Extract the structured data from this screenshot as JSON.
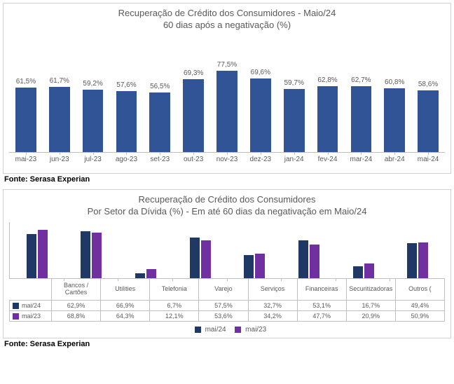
{
  "source_label": "Fonte: Serasa Experian",
  "chart1": {
    "type": "bar",
    "title_line1": "Recuperação de Crédito dos Consumidores - Maio/24",
    "title_line2": "60 dias após a negativação (%)",
    "title_fontsize": 13,
    "title_color": "#595959",
    "bar_color": "#305496",
    "background_color": "#ffffff",
    "border_color": "#d0d0d0",
    "axis_color": "#bfbfbf",
    "label_color": "#595959",
    "label_fontsize": 10,
    "ylim_max": 100,
    "categories": [
      "mai-23",
      "jun-23",
      "jul-23",
      "ago-23",
      "set-23",
      "out-23",
      "nov-23",
      "dez-23",
      "jan-24",
      "fev-24",
      "mar-24",
      "abr-24",
      "mai-24"
    ],
    "values": [
      61.5,
      61.7,
      59.2,
      57.6,
      56.5,
      69.3,
      77.5,
      69.6,
      59.7,
      62.8,
      62.7,
      60.8,
      58.6
    ],
    "value_labels": [
      "61,5%",
      "61,7%",
      "59,2%",
      "57,6%",
      "56,5%",
      "69,3%",
      "77,5%",
      "69,6%",
      "59,7%",
      "62,8%",
      "62,7%",
      "60,8%",
      "58,6%"
    ]
  },
  "chart2": {
    "type": "grouped-bar",
    "title_line1": "Recuperação de Crédito dos Consumidores",
    "title_line2": "Por Setor da Dívida (%) - Em até 60 dias da negativação em Maio/24",
    "title_fontsize": 13,
    "title_color": "#595959",
    "series_a_name": "mai/24",
    "series_b_name": "mai/23",
    "series_a_color": "#203864",
    "series_b_color": "#7030a0",
    "background_color": "#ffffff",
    "border_color": "#d0d0d0",
    "axis_color": "#bfbfbf",
    "label_color": "#595959",
    "label_fontsize": 9,
    "ylim_max": 80,
    "categories": [
      "Bancos / Cartões",
      "Utilities",
      "Telefonia",
      "Varejo",
      "Serviços",
      "Financeiras",
      "Securitizadoras",
      "Outros ("
    ],
    "series_a_values": [
      62.9,
      66.9,
      6.7,
      57.5,
      32.7,
      53.1,
      16.7,
      49.4
    ],
    "series_b_values": [
      68.8,
      64.3,
      12.1,
      53.6,
      34.2,
      47.7,
      20.9,
      50.9
    ],
    "series_a_labels": [
      "62,9%",
      "66,9%",
      "6,7%",
      "57,5%",
      "32,7%",
      "53,1%",
      "16,7%",
      "49,4%"
    ],
    "series_b_labels": [
      "68,8%",
      "64,3%",
      "12,1%",
      "53,6%",
      "34,2%",
      "47,7%",
      "20,9%",
      "50,9%"
    ]
  }
}
